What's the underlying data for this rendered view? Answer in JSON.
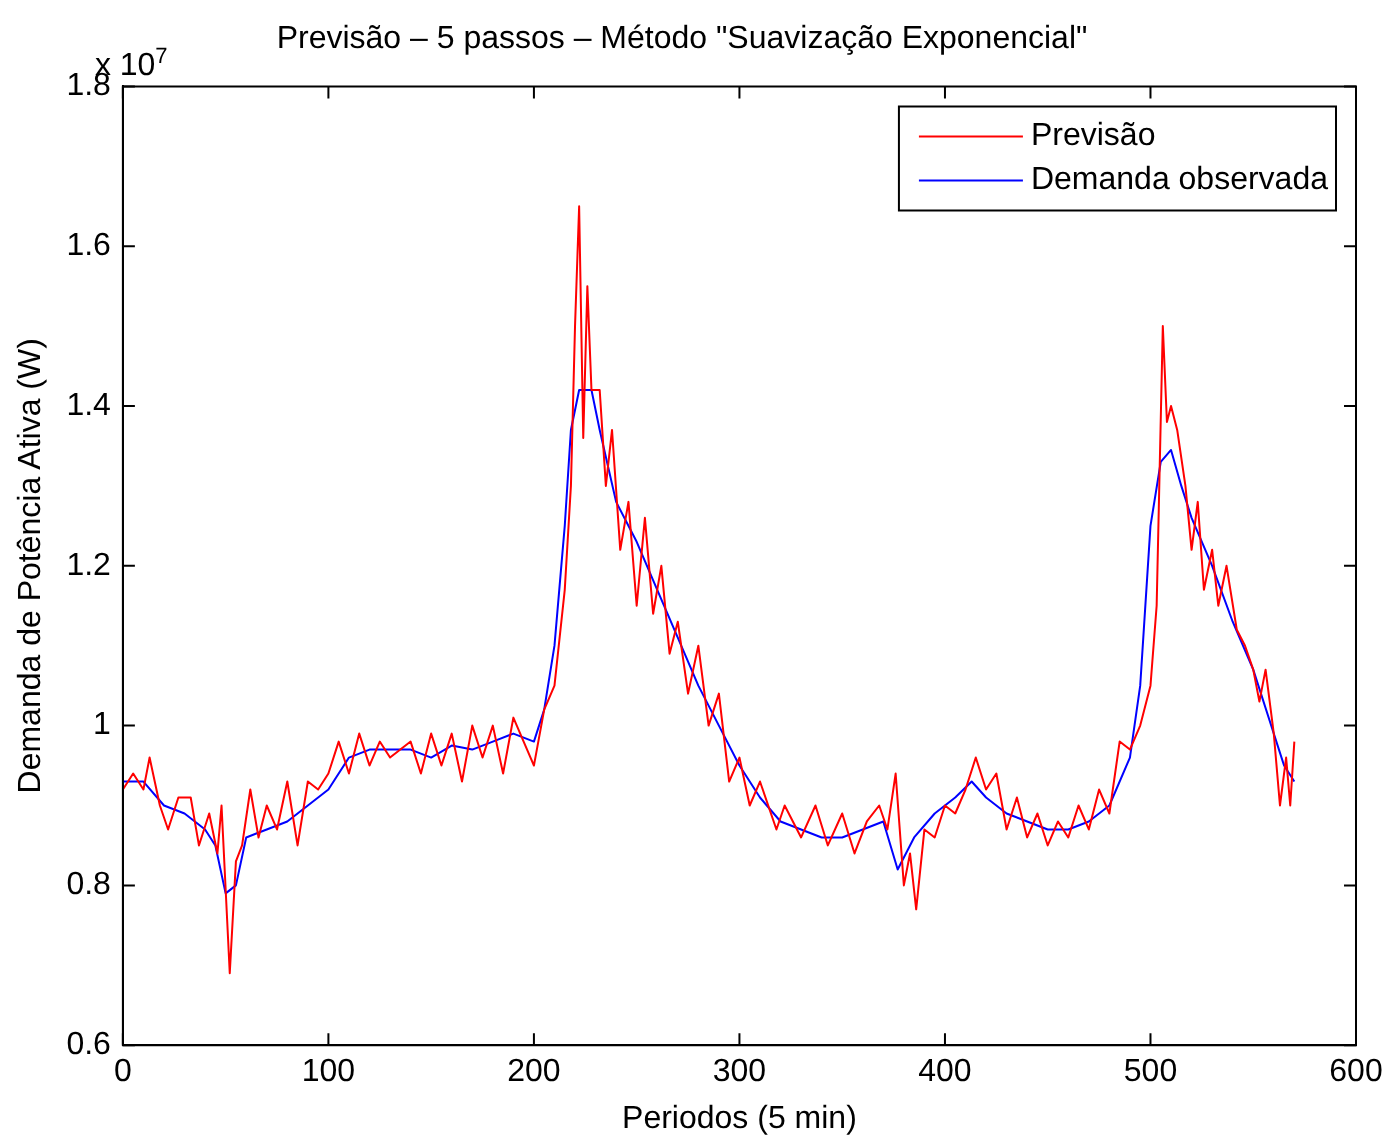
{
  "chart_data": {
    "type": "line",
    "title": "Previsão – 5 passos – Método \"Suavização Exponencial\"",
    "xlabel": "Periodos (5 min)",
    "ylabel": "Demanda de Potência Ativa (W)",
    "annotations": [
      "x 10$^{7}$"
    ],
    "xlim": [
      0,
      600
    ],
    "xticks": [
      0,
      100,
      200,
      300,
      400,
      500,
      600
    ],
    "ylim": [
      0.6,
      1.8
    ],
    "yticks": [
      0.6,
      0.8,
      1,
      1.2,
      1.4,
      1.6,
      1.8
    ],
    "grid": false,
    "legend": "top right",
    "marker": "none",
    "line_style": "solid",
    "series": [
      {
        "name": "Previsão",
        "color": "#ff0000",
        "x": [
          0,
          5,
          10,
          13,
          18,
          22,
          27,
          33,
          37,
          42,
          46,
          48,
          52,
          55,
          58,
          62,
          66,
          70,
          75,
          80,
          85,
          90,
          95,
          100,
          105,
          110,
          115,
          120,
          125,
          130,
          140,
          145,
          150,
          155,
          160,
          165,
          170,
          175,
          180,
          185,
          190,
          195,
          200,
          205,
          210,
          215,
          218,
          220,
          222,
          224,
          226,
          228,
          232,
          235,
          238,
          242,
          246,
          250,
          254,
          258,
          262,
          266,
          270,
          275,
          280,
          285,
          290,
          295,
          300,
          305,
          310,
          318,
          322,
          330,
          337,
          343,
          350,
          356,
          362,
          368,
          372,
          376,
          380,
          383,
          386,
          390,
          395,
          400,
          405,
          410,
          415,
          420,
          425,
          430,
          435,
          440,
          445,
          450,
          455,
          460,
          465,
          470,
          475,
          480,
          485,
          490,
          495,
          500,
          503,
          506,
          508,
          510,
          513,
          517,
          520,
          523,
          526,
          530,
          533,
          537,
          542,
          546,
          550,
          553,
          556,
          560,
          563,
          566,
          568,
          570
        ],
        "values": [
          0.92,
          0.94,
          0.92,
          0.96,
          0.9,
          0.87,
          0.91,
          0.91,
          0.85,
          0.89,
          0.84,
          0.9,
          0.69,
          0.83,
          0.85,
          0.92,
          0.86,
          0.9,
          0.87,
          0.93,
          0.85,
          0.93,
          0.92,
          0.94,
          0.98,
          0.94,
          0.99,
          0.95,
          0.98,
          0.96,
          0.98,
          0.94,
          0.99,
          0.95,
          0.99,
          0.93,
          1,
          0.96,
          1,
          0.94,
          1.01,
          0.98,
          0.95,
          1.02,
          1.05,
          1.17,
          1.3,
          1.5,
          1.65,
          1.36,
          1.55,
          1.42,
          1.42,
          1.3,
          1.37,
          1.22,
          1.28,
          1.15,
          1.26,
          1.14,
          1.2,
          1.09,
          1.13,
          1.04,
          1.1,
          1,
          1.04,
          0.93,
          0.96,
          0.9,
          0.93,
          0.87,
          0.9,
          0.86,
          0.9,
          0.85,
          0.89,
          0.84,
          0.88,
          0.9,
          0.87,
          0.94,
          0.8,
          0.84,
          0.77,
          0.87,
          0.86,
          0.9,
          0.89,
          0.92,
          0.96,
          0.92,
          0.94,
          0.87,
          0.91,
          0.86,
          0.89,
          0.85,
          0.88,
          0.86,
          0.9,
          0.87,
          0.92,
          0.89,
          0.98,
          0.97,
          1,
          1.05,
          1.15,
          1.5,
          1.38,
          1.4,
          1.37,
          1.3,
          1.22,
          1.28,
          1.17,
          1.22,
          1.15,
          1.2,
          1.12,
          1.1,
          1.07,
          1.03,
          1.07,
          0.99,
          0.9,
          0.96,
          0.9,
          0.98
        ]
      },
      {
        "name": "Demanda observada",
        "color": "#0000ff",
        "x": [
          0,
          10,
          20,
          30,
          40,
          45,
          50,
          55,
          60,
          70,
          80,
          90,
          100,
          110,
          120,
          130,
          140,
          150,
          160,
          170,
          180,
          190,
          200,
          205,
          210,
          215,
          218,
          222,
          228,
          232,
          240,
          250,
          260,
          270,
          280,
          290,
          300,
          310,
          320,
          330,
          340,
          350,
          360,
          370,
          377,
          385,
          395,
          405,
          413,
          420,
          430,
          440,
          450,
          460,
          470,
          480,
          490,
          495,
          500,
          505,
          510,
          515,
          520,
          530,
          540,
          550,
          560,
          565,
          570
        ],
        "values": [
          0.93,
          0.93,
          0.9,
          0.89,
          0.87,
          0.85,
          0.79,
          0.8,
          0.86,
          0.87,
          0.88,
          0.9,
          0.92,
          0.96,
          0.97,
          0.97,
          0.97,
          0.96,
          0.975,
          0.97,
          0.98,
          0.99,
          0.98,
          1.02,
          1.1,
          1.25,
          1.37,
          1.42,
          1.42,
          1.37,
          1.28,
          1.23,
          1.17,
          1.11,
          1.05,
          1,
          0.95,
          0.91,
          0.88,
          0.87,
          0.86,
          0.86,
          0.87,
          0.88,
          0.82,
          0.86,
          0.89,
          0.91,
          0.93,
          0.91,
          0.89,
          0.88,
          0.87,
          0.87,
          0.88,
          0.9,
          0.96,
          1.05,
          1.25,
          1.33,
          1.345,
          1.3,
          1.26,
          1.2,
          1.13,
          1.07,
          0.99,
          0.95,
          0.93
        ]
      }
    ]
  }
}
